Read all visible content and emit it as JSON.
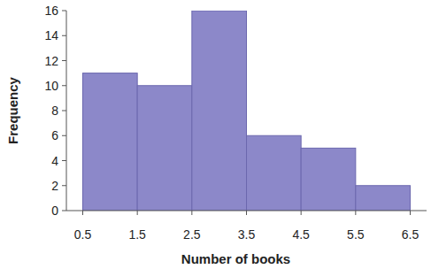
{
  "chart_data": {
    "type": "histogram",
    "xlabel": "Number of books",
    "ylabel": "Frequency",
    "bins": [
      0.5,
      1.5,
      2.5,
      3.5,
      4.5,
      5.5,
      6.5
    ],
    "values": [
      11,
      10,
      16,
      6,
      5,
      2
    ],
    "color": "#8c88c9",
    "xlim": [
      0.2,
      6.8
    ],
    "xticks": [
      0.5,
      1.5,
      2.5,
      3.5,
      4.5,
      5.5,
      6.5
    ],
    "ylim": [
      0,
      16
    ],
    "yticks": [
      0,
      2,
      4,
      6,
      8,
      10,
      12,
      14,
      16
    ],
    "grid": false
  }
}
